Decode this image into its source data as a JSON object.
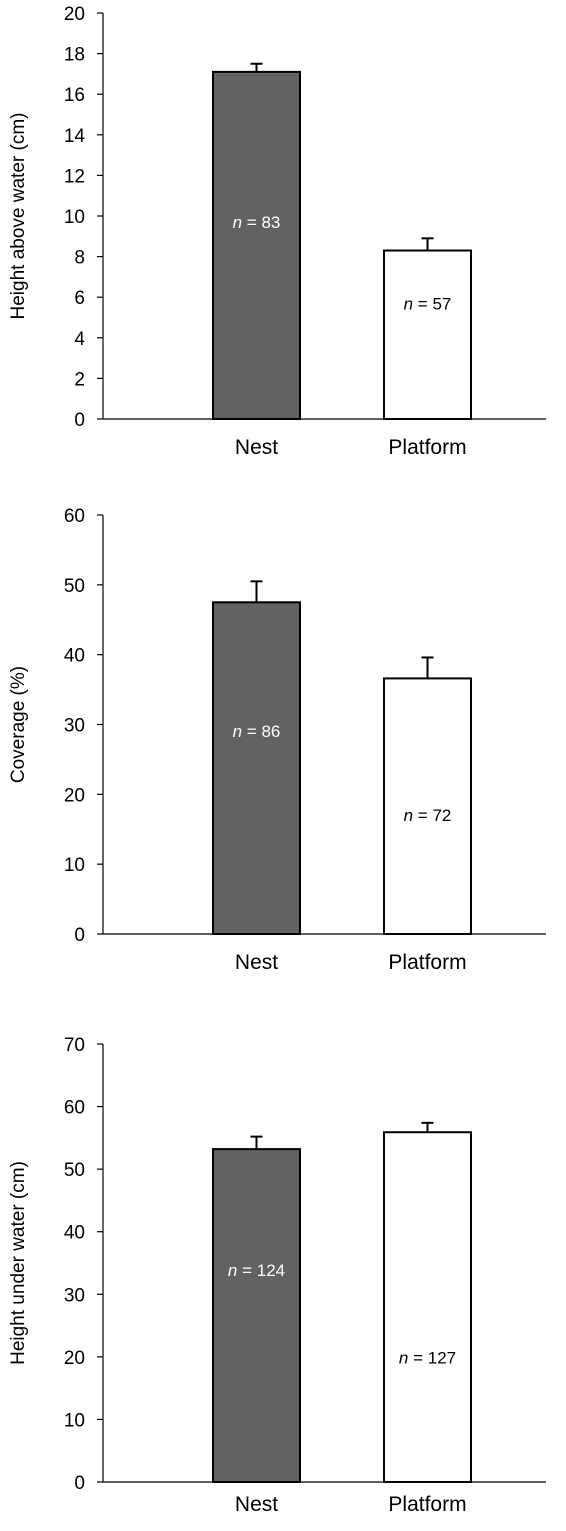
{
  "chart_data": [
    {
      "type": "bar",
      "categories": [
        "Nest",
        "Platform"
      ],
      "values": [
        17.1,
        8.3
      ],
      "errors": [
        0.4,
        0.6
      ],
      "annotations": [
        "83",
        "57"
      ],
      "annotation_prefix": "n",
      "annotation_sep": " = ",
      "bar_colors": [
        "#626262",
        "#ffffff"
      ],
      "title": "",
      "xlabel": "",
      "ylabel": "Height above water (cm)",
      "ylim": [
        0,
        20
      ],
      "yticks": [
        "0",
        "2",
        "4",
        "6",
        "8",
        "10",
        "12",
        "14",
        "16",
        "18",
        "20"
      ],
      "grid": false,
      "legend": "none"
    },
    {
      "type": "bar",
      "categories": [
        "Nest",
        "Platform"
      ],
      "values": [
        47.5,
        36.6
      ],
      "errors": [
        3.0,
        3.0
      ],
      "annotations": [
        "86",
        "72"
      ],
      "annotation_prefix": "n",
      "annotation_sep": " = ",
      "bar_colors": [
        "#626262",
        "#ffffff"
      ],
      "title": "",
      "xlabel": "",
      "ylabel": "Coverage (%)",
      "ylim": [
        0,
        60
      ],
      "yticks": [
        "0",
        "10",
        "20",
        "30",
        "40",
        "50",
        "60"
      ],
      "grid": false,
      "legend": "none"
    },
    {
      "type": "bar",
      "categories": [
        "Nest",
        "Platform"
      ],
      "values": [
        53.2,
        55.9
      ],
      "errors": [
        2.0,
        1.5
      ],
      "annotations": [
        "124",
        "127"
      ],
      "annotation_prefix": "n",
      "annotation_sep": " = ",
      "bar_colors": [
        "#626262",
        "#ffffff"
      ],
      "title": "",
      "xlabel": "",
      "ylabel": "Height under water (cm)",
      "ylim": [
        0,
        70
      ],
      "yticks": [
        "0",
        "10",
        "20",
        "30",
        "40",
        "50",
        "60",
        "70"
      ],
      "grid": false,
      "legend": "none"
    }
  ]
}
